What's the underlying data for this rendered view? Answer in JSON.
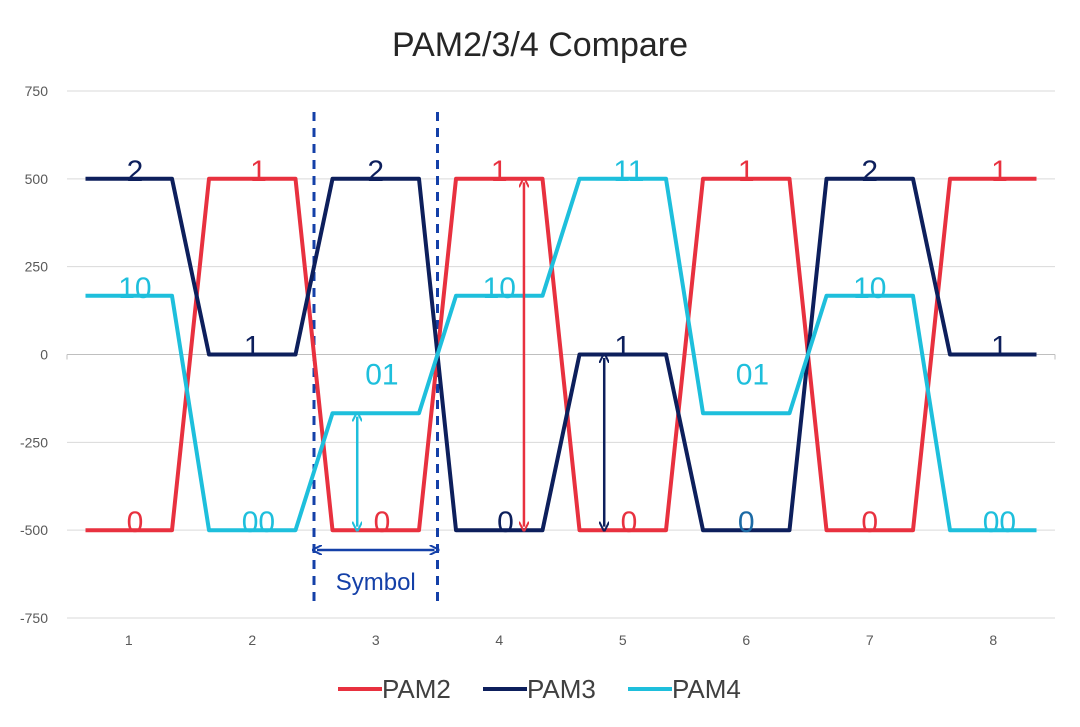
{
  "chart_data": {
    "type": "line",
    "title": "PAM2/3/4 Compare",
    "xlabel": "",
    "ylabel": "",
    "ylim": [
      -750,
      750
    ],
    "xlim": [
      0.5,
      8.5
    ],
    "yticks": [
      "750",
      "500",
      "250",
      "0",
      "-250",
      "-500",
      "-750"
    ],
    "ytick_values": [
      750,
      500,
      250,
      0,
      -250,
      -500,
      -750
    ],
    "categories": [
      "1",
      "2",
      "3",
      "4",
      "5",
      "6",
      "7",
      "8"
    ],
    "grid": true,
    "legend_position": "bottom",
    "series": [
      {
        "name": "PAM2",
        "color": "#e8313f",
        "points": [
          [
            0.65,
            -500
          ],
          [
            1.35,
            -500
          ],
          [
            1.65,
            500
          ],
          [
            2.35,
            500
          ],
          [
            2.65,
            -500
          ],
          [
            3.35,
            -500
          ],
          [
            3.65,
            500
          ],
          [
            4.35,
            500
          ],
          [
            4.65,
            -500
          ],
          [
            5.35,
            -500
          ],
          [
            5.65,
            500
          ],
          [
            6.35,
            500
          ],
          [
            6.65,
            -500
          ],
          [
            7.35,
            -500
          ],
          [
            7.65,
            500
          ],
          [
            8.35,
            500
          ]
        ]
      },
      {
        "name": "PAM3",
        "color": "#0d1f5c",
        "points": [
          [
            0.65,
            500
          ],
          [
            1.35,
            500
          ],
          [
            1.65,
            0
          ],
          [
            2.35,
            0
          ],
          [
            2.65,
            500
          ],
          [
            3.35,
            500
          ],
          [
            3.65,
            -500
          ],
          [
            4.35,
            -500
          ],
          [
            4.65,
            0
          ],
          [
            5.35,
            0
          ],
          [
            5.65,
            -500
          ],
          [
            6.35,
            -500
          ],
          [
            6.65,
            500
          ],
          [
            7.35,
            500
          ],
          [
            7.65,
            0
          ],
          [
            8.35,
            0
          ]
        ]
      },
      {
        "name": "PAM4",
        "color": "#1ebfdc",
        "points": [
          [
            0.65,
            167
          ],
          [
            1.35,
            167
          ],
          [
            1.65,
            -500
          ],
          [
            2.35,
            -500
          ],
          [
            2.65,
            -167
          ],
          [
            3.35,
            -167
          ],
          [
            3.65,
            167
          ],
          [
            4.35,
            167
          ],
          [
            4.65,
            500
          ],
          [
            5.35,
            500
          ],
          [
            5.65,
            -167
          ],
          [
            6.35,
            -167
          ],
          [
            6.65,
            167
          ],
          [
            7.35,
            167
          ],
          [
            7.65,
            -500
          ],
          [
            8.35,
            -500
          ]
        ]
      }
    ],
    "annotations": [
      {
        "text": "2",
        "x": 1.05,
        "y": 500,
        "color": "#0d1f5c"
      },
      {
        "text": "1",
        "x": 2.05,
        "y": 500,
        "color": "#e8313f"
      },
      {
        "text": "2",
        "x": 3.0,
        "y": 500,
        "color": "#0d1f5c"
      },
      {
        "text": "1",
        "x": 4.0,
        "y": 500,
        "color": "#e8313f"
      },
      {
        "text": "11",
        "x": 5.05,
        "y": 500,
        "color": "#1ebfdc"
      },
      {
        "text": "1",
        "x": 6.0,
        "y": 500,
        "color": "#e8313f"
      },
      {
        "text": "2",
        "x": 7.0,
        "y": 500,
        "color": "#0d1f5c"
      },
      {
        "text": "1",
        "x": 8.05,
        "y": 500,
        "color": "#e8313f"
      },
      {
        "text": "10",
        "x": 1.05,
        "y": 167,
        "color": "#1ebfdc"
      },
      {
        "text": "1",
        "x": 2.0,
        "y": 0,
        "color": "#0d1f5c"
      },
      {
        "text": "10",
        "x": 4.0,
        "y": 167,
        "color": "#1ebfdc"
      },
      {
        "text": "1",
        "x": 5.0,
        "y": 0,
        "color": "#0d1f5c"
      },
      {
        "text": "10",
        "x": 7.0,
        "y": 167,
        "color": "#1ebfdc"
      },
      {
        "text": "1",
        "x": 8.05,
        "y": 0,
        "color": "#0d1f5c"
      },
      {
        "text": "01",
        "x": 3.05,
        "y": -80,
        "color": "#1ebfdc"
      },
      {
        "text": "01",
        "x": 6.05,
        "y": -80,
        "color": "#1ebfdc"
      },
      {
        "text": "0",
        "x": 1.05,
        "y": -500,
        "color": "#e8313f"
      },
      {
        "text": "00",
        "x": 2.05,
        "y": -500,
        "color": "#1ebfdc"
      },
      {
        "text": "0",
        "x": 3.05,
        "y": -500,
        "color": "#e8313f"
      },
      {
        "text": "0",
        "x": 4.05,
        "y": -500,
        "color": "#0d1f5c"
      },
      {
        "text": "0",
        "x": 5.05,
        "y": -500,
        "color": "#e8313f"
      },
      {
        "text": "0",
        "x": 6.0,
        "y": -500,
        "color": "#1b6aa5"
      },
      {
        "text": "0",
        "x": 7.0,
        "y": -500,
        "color": "#e8313f"
      },
      {
        "text": "00",
        "x": 8.05,
        "y": -500,
        "color": "#1ebfdc"
      }
    ],
    "amplitude_arrows": [
      {
        "x": 4.2,
        "y_from": 490,
        "y_to": -490,
        "color": "#e8313f"
      },
      {
        "x": 4.85,
        "y_from": -10,
        "y_to": -490,
        "color": "#0d1f5c"
      },
      {
        "x": 2.85,
        "y_from": -177,
        "y_to": -490,
        "color": "#1ebfdc"
      }
    ],
    "symbol_marker": {
      "text": "Symbol",
      "x_from": 2.5,
      "x_to": 3.5,
      "color": "#1440a8"
    }
  }
}
